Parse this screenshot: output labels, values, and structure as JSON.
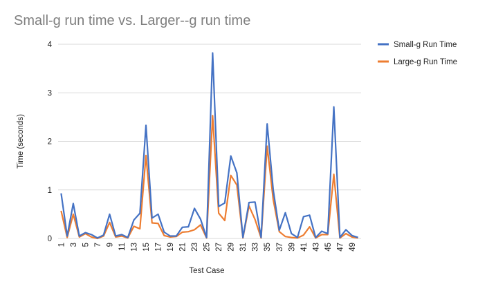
{
  "chart_data": {
    "type": "line",
    "title": "Small-g run time vs. Larger--g run time",
    "xlabel": "Test Case",
    "ylabel": "Time (seconds)",
    "ylim": [
      0,
      4
    ],
    "yticks": [
      "0",
      "1",
      "2",
      "3",
      "4"
    ],
    "x": [
      1,
      2,
      3,
      4,
      5,
      6,
      7,
      8,
      9,
      10,
      11,
      12,
      13,
      14,
      15,
      16,
      17,
      18,
      19,
      20,
      21,
      22,
      23,
      24,
      25,
      26,
      27,
      28,
      29,
      30,
      31,
      32,
      33,
      34,
      35,
      36,
      37,
      38,
      39,
      40,
      41,
      42,
      43,
      44,
      45,
      46,
      47,
      48,
      49,
      50
    ],
    "xtick_labels": [
      "1",
      "3",
      "5",
      "7",
      "9",
      "11",
      "13",
      "15",
      "17",
      "19",
      "21",
      "23",
      "25",
      "27",
      "29",
      "31",
      "33",
      "35",
      "37",
      "39",
      "41",
      "43",
      "45",
      "47",
      "49"
    ],
    "grid": "horizontal",
    "legend_position": "right",
    "series": [
      {
        "name": "Small-g Run Time",
        "color": "#4472C4",
        "values": [
          0.93,
          0.05,
          0.72,
          0.05,
          0.12,
          0.08,
          0.01,
          0.07,
          0.5,
          0.05,
          0.08,
          0.02,
          0.38,
          0.52,
          2.33,
          0.42,
          0.5,
          0.13,
          0.05,
          0.05,
          0.23,
          0.24,
          0.62,
          0.4,
          0.02,
          3.82,
          0.66,
          0.73,
          1.7,
          1.35,
          0.02,
          0.74,
          0.75,
          0.02,
          2.36,
          1.0,
          0.17,
          0.53,
          0.1,
          0.02,
          0.45,
          0.48,
          0.02,
          0.15,
          0.1,
          2.71,
          0.02,
          0.18,
          0.06,
          0.02
        ]
      },
      {
        "name": "Large-g Run Time",
        "color": "#ED7D31",
        "values": [
          0.57,
          0.02,
          0.5,
          0.03,
          0.1,
          0.03,
          0.0,
          0.05,
          0.33,
          0.03,
          0.05,
          0.01,
          0.25,
          0.2,
          1.71,
          0.32,
          0.31,
          0.06,
          0.03,
          0.04,
          0.13,
          0.14,
          0.18,
          0.28,
          0.01,
          2.53,
          0.52,
          0.37,
          1.3,
          1.1,
          0.01,
          0.67,
          0.39,
          0.01,
          1.9,
          0.8,
          0.14,
          0.04,
          0.02,
          0.01,
          0.07,
          0.24,
          0.01,
          0.08,
          0.08,
          1.32,
          0.01,
          0.1,
          0.03,
          0.01
        ]
      }
    ]
  }
}
